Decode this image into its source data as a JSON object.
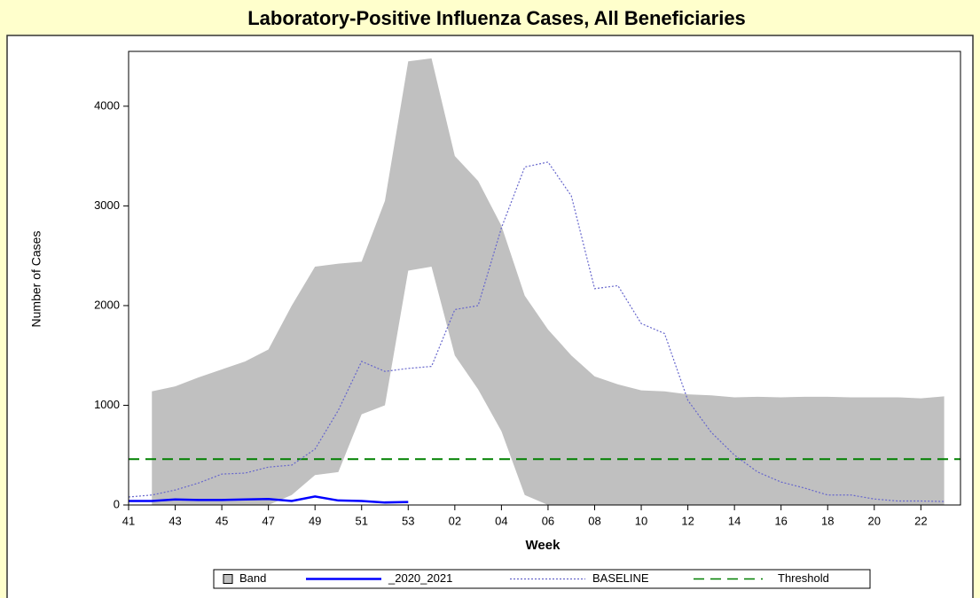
{
  "chart_data": {
    "type": "band-line",
    "title": "Laboratory-Positive Influenza Cases, All Beneficiaries",
    "xlabel": "Week",
    "ylabel": "Number of Cases",
    "categories": [
      "41",
      null,
      "43",
      null,
      "45",
      null,
      "47",
      null,
      "49",
      null,
      "51",
      null,
      "53",
      null,
      "02",
      null,
      "04",
      null,
      "06",
      null,
      "08",
      null,
      "10",
      null,
      "12",
      null,
      "14",
      null,
      "16",
      null,
      "18",
      null,
      "20",
      null,
      "22",
      null
    ],
    "band": {
      "name": "Band",
      "color": "#c0c0c0",
      "upper": [
        null,
        1140,
        1190,
        1280,
        1360,
        1440,
        1560,
        2000,
        2390,
        2420,
        2440,
        3050,
        4450,
        4480,
        3500,
        3250,
        2800,
        2100,
        1760,
        1500,
        1290,
        1210,
        1150,
        1140,
        1110,
        1100,
        1080,
        1085,
        1080,
        1085,
        1085,
        1080,
        1080,
        1080,
        1070,
        1090
      ],
      "lower": [
        null,
        0,
        0,
        0,
        0,
        0,
        0,
        100,
        300,
        330,
        910,
        1000,
        2350,
        2390,
        1500,
        1160,
        740,
        100,
        0,
        0,
        0,
        0,
        0,
        0,
        0,
        0,
        0,
        0,
        0,
        0,
        0,
        0,
        0,
        0,
        0,
        0
      ]
    },
    "series": [
      {
        "name": "_2020_2021",
        "color": "#0000ff",
        "style": "solid",
        "values": [
          40,
          40,
          55,
          50,
          50,
          55,
          60,
          40,
          85,
          45,
          40,
          25,
          30,
          null,
          null,
          null,
          null,
          null,
          null,
          null,
          null,
          null,
          null,
          null,
          null,
          null,
          null,
          null,
          null,
          null,
          null,
          null,
          null,
          null,
          null,
          null
        ]
      },
      {
        "name": "BASELINE",
        "color": "#6666cc",
        "style": "dotted",
        "values": [
          80,
          100,
          150,
          220,
          310,
          320,
          380,
          400,
          560,
          950,
          1440,
          1340,
          1370,
          1390,
          1960,
          2000,
          2780,
          3390,
          3440,
          3100,
          2170,
          2200,
          1820,
          1720,
          1050,
          730,
          500,
          330,
          230,
          170,
          100,
          100,
          60,
          40,
          40,
          35
        ]
      }
    ],
    "threshold": {
      "name": "Threshold",
      "value": 460,
      "color": "#008000"
    },
    "ylim": [
      0,
      4550
    ],
    "yticks": [
      0,
      1000,
      2000,
      3000,
      4000
    ]
  }
}
